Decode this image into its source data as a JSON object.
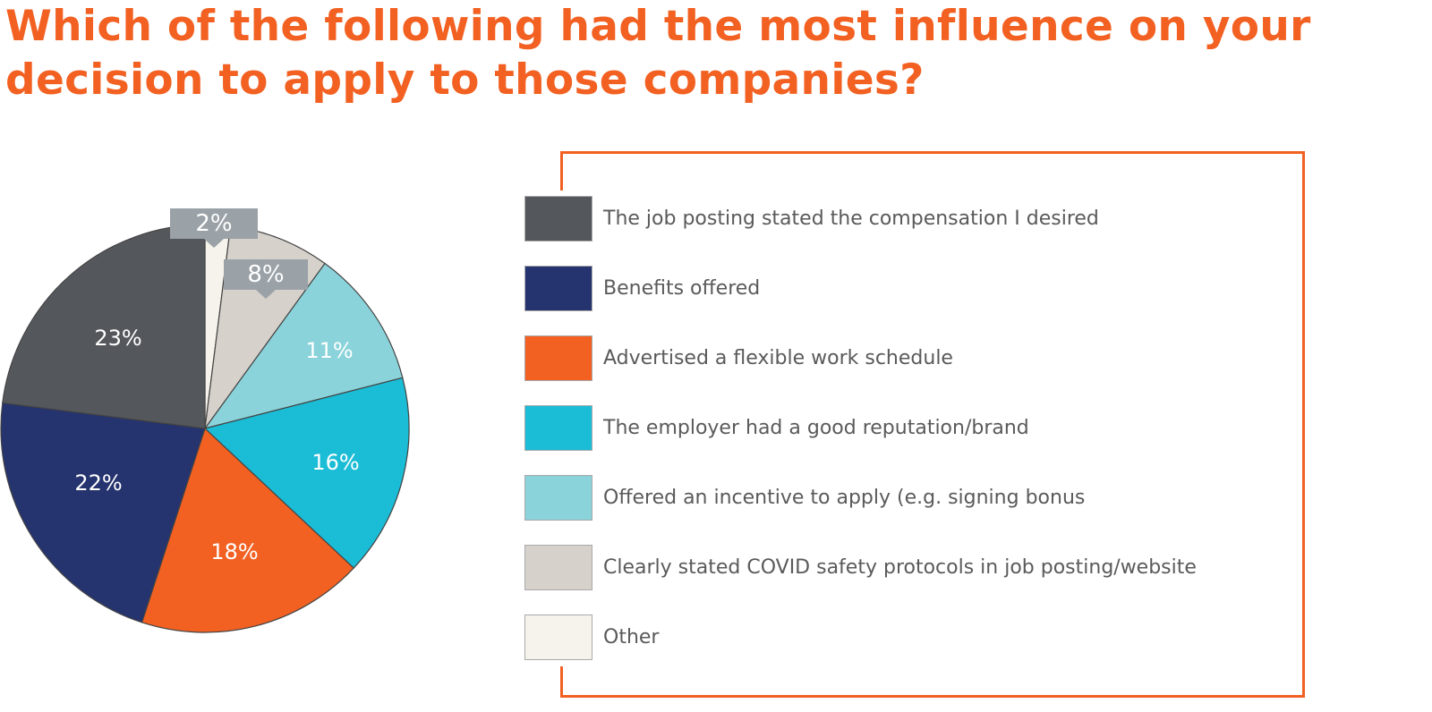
{
  "chart_data": {
    "type": "pie",
    "title": "Which of the following had the most influence on your decision to apply to those companies?",
    "slices": [
      {
        "label": "Other",
        "value": 2,
        "display": "2%",
        "color": "#f6f3ec"
      },
      {
        "label": "Clearly stated COVID safety protocols in job posting/website",
        "value": 8,
        "display": "8%",
        "color": "#d6d1cb"
      },
      {
        "label": "Offered an incentive to apply (e.g. signing bonus",
        "value": 11,
        "display": "11%",
        "color": "#8ad3da"
      },
      {
        "label": "The employer had a good reputation/brand",
        "value": 16,
        "display": "16%",
        "color": "#1bbcd6"
      },
      {
        "label": "Advertised a flexible work schedule",
        "value": 18,
        "display": "18%",
        "color": "#f26122"
      },
      {
        "label": "Benefits offered",
        "value": 22,
        "display": "22%",
        "color": "#25336e"
      },
      {
        "label": "The job posting stated the compensation I desired",
        "value": 23,
        "display": "23%",
        "color": "#54575b"
      }
    ],
    "legend_order": [
      6,
      5,
      4,
      3,
      2,
      1,
      0
    ],
    "legend_placement": "right"
  }
}
